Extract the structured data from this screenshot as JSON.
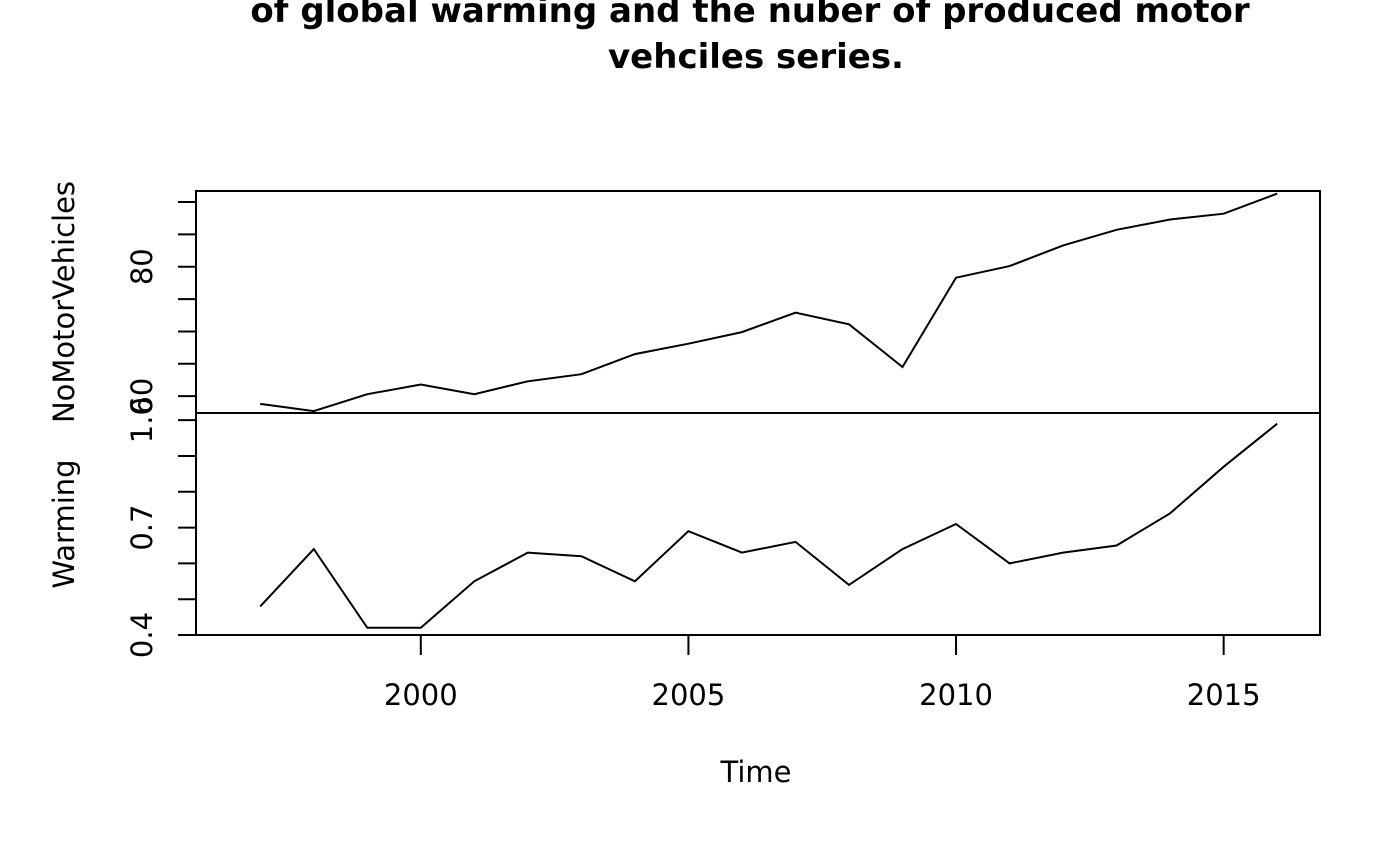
{
  "chart_data": {
    "type": "line",
    "title_lines": [
      "of global warming and the nuber of produced motor",
      "vehciles series."
    ],
    "xlabel": "Time",
    "x_ticks": [
      2000,
      2005,
      2010,
      2015
    ],
    "x_tick_labels": [
      "2000",
      "2005",
      "2010",
      "2015"
    ],
    "xlim": [
      1995.8,
      2016.8
    ],
    "panels": [
      {
        "name": "NoMotorVehicles",
        "ylabel": "NoMotorVehicles",
        "ylim": [
          57.4,
          91.7
        ],
        "y_ticks": [
          60,
          65,
          70,
          75,
          80,
          85,
          90
        ],
        "y_tick_labels": [
          "60",
          "",
          "",
          "",
          "80",
          "",
          ""
        ],
        "x": [
          1997,
          1998,
          1999,
          2000,
          2001,
          2002,
          2003,
          2004,
          2005,
          2006,
          2007,
          2008,
          2009,
          2010,
          2011,
          2012,
          2013,
          2014,
          2015,
          2016
        ],
        "values": [
          58.8,
          57.7,
          60.3,
          61.8,
          60.3,
          62.3,
          63.4,
          66.5,
          68.1,
          69.9,
          72.9,
          71.1,
          64.5,
          78.3,
          80.1,
          83.3,
          85.7,
          87.3,
          88.2,
          91.3
        ]
      },
      {
        "name": "Warming",
        "ylabel": "Warming",
        "ylim": [
          0.4,
          1.02
        ],
        "y_ticks": [
          0.4,
          0.5,
          0.6,
          0.7,
          0.8,
          0.9,
          1.0
        ],
        "y_tick_labels": [
          "0.4",
          "",
          "",
          "0.7",
          "",
          "",
          "1.0"
        ],
        "x": [
          1997,
          1998,
          1999,
          2000,
          2001,
          2002,
          2003,
          2004,
          2005,
          2006,
          2007,
          2008,
          2009,
          2010,
          2011,
          2012,
          2013,
          2014,
          2015,
          2016
        ],
        "values": [
          0.48,
          0.64,
          0.42,
          0.42,
          0.55,
          0.63,
          0.62,
          0.55,
          0.69,
          0.63,
          0.66,
          0.54,
          0.64,
          0.71,
          0.6,
          0.63,
          0.65,
          0.74,
          0.87,
          0.99
        ]
      }
    ]
  }
}
